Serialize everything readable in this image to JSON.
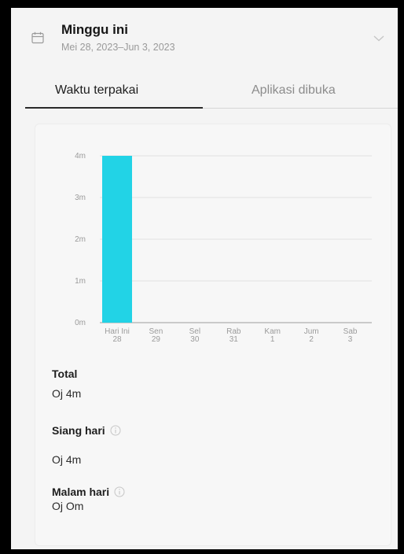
{
  "header": {
    "title": "Minggu ini",
    "date_range": "Mei 28, 2023–Jun 3, 2023"
  },
  "tabs": [
    {
      "label": "Waktu terpakai",
      "active": true
    },
    {
      "label": "Aplikasi dibuka",
      "active": false
    }
  ],
  "chart_data": {
    "type": "bar",
    "y_unit": "minutes",
    "ylim": [
      0,
      4
    ],
    "y_ticks": [
      "0m",
      "1m",
      "2m",
      "3m",
      "4m"
    ],
    "categories": [
      {
        "day": "Hari Ini",
        "date": "28"
      },
      {
        "day": "Sen",
        "date": "29"
      },
      {
        "day": "Sel",
        "date": "30"
      },
      {
        "day": "Rab",
        "date": "31"
      },
      {
        "day": "Kam",
        "date": "1"
      },
      {
        "day": "Jum",
        "date": "2"
      },
      {
        "day": "Sab",
        "date": "3"
      }
    ],
    "values": [
      4,
      0,
      0,
      0,
      0,
      0,
      0
    ],
    "bar_color": "#22d3e6",
    "grid": true
  },
  "stats": {
    "total_label": "Total",
    "total_value": "Oj 4m",
    "day_label": "Siang hari",
    "day_value": "Oj 4m",
    "night_label": "Malam hari",
    "night_value": "Oj Om"
  },
  "icons": {
    "calendar": "calendar-icon",
    "expand": "chevron-down-icon",
    "info": "info-icon"
  }
}
